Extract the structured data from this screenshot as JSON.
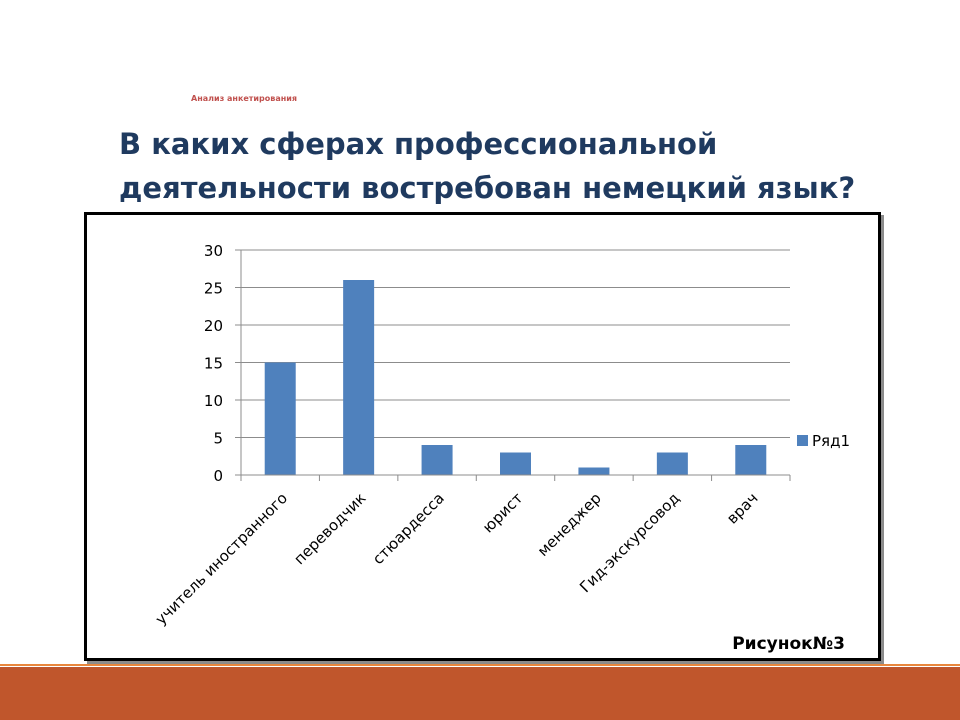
{
  "slide": {
    "subtitle": "Анализ анкетирования",
    "title_line1": "В каких сферах профессиональной",
    "title_line2": "деятельности востребован немецкий язык?",
    "figure_caption": "Рисунок№3",
    "colors": {
      "title": "#1f3a5f",
      "subtitle": "#c0504d",
      "bar": "#4f81bd",
      "footer": "#c0562c",
      "footer_line": "#e8873d"
    }
  },
  "chart_data": {
    "type": "bar",
    "categories": [
      "учитель иностранного",
      "переводчик",
      "стюардесса",
      "юрист",
      "менеджер",
      "Гид-экскурсовод",
      "врач"
    ],
    "series": [
      {
        "name": "Ряд1",
        "values": [
          15,
          26,
          4,
          3,
          1,
          3,
          4
        ],
        "color": "#4f81bd"
      }
    ],
    "yticks": [
      "0",
      "5",
      "10",
      "15",
      "20",
      "25",
      "30"
    ],
    "ylim": [
      0,
      30
    ],
    "grid": true,
    "legend_position": "right"
  }
}
